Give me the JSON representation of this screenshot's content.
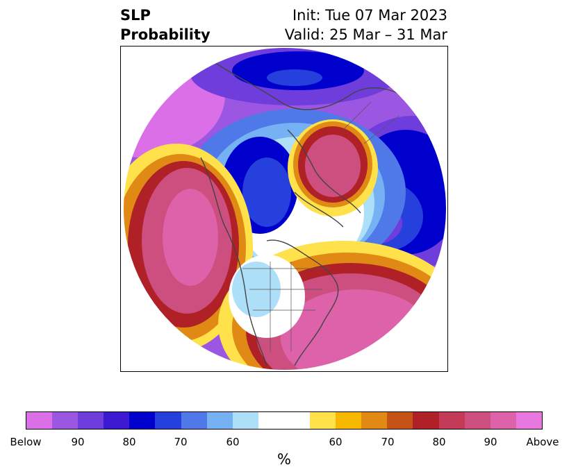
{
  "title": {
    "left_line1": "SLP",
    "left_line2": "Probability",
    "right_line1": "Init: Tue 07 Mar 2023",
    "right_line2": "Valid: 25 Mar – 31 Mar"
  },
  "colorbar": {
    "colors": [
      "#da6fe7",
      "#9c57e2",
      "#6f3ddc",
      "#3c19d0",
      "#0000cd",
      "#2540dc",
      "#4f78e8",
      "#76b1f3",
      "#addff9",
      "#ffffff",
      "#ffffff",
      "#ffe24b",
      "#f7b800",
      "#e08914",
      "#c55318",
      "#b02027",
      "#c33b58",
      "#cc4f7f",
      "#dd62a9",
      "#e878df"
    ],
    "labels": [
      "Below",
      "90",
      "80",
      "70",
      "60",
      "60",
      "70",
      "80",
      "90",
      "Above"
    ],
    "unit": "%"
  }
}
